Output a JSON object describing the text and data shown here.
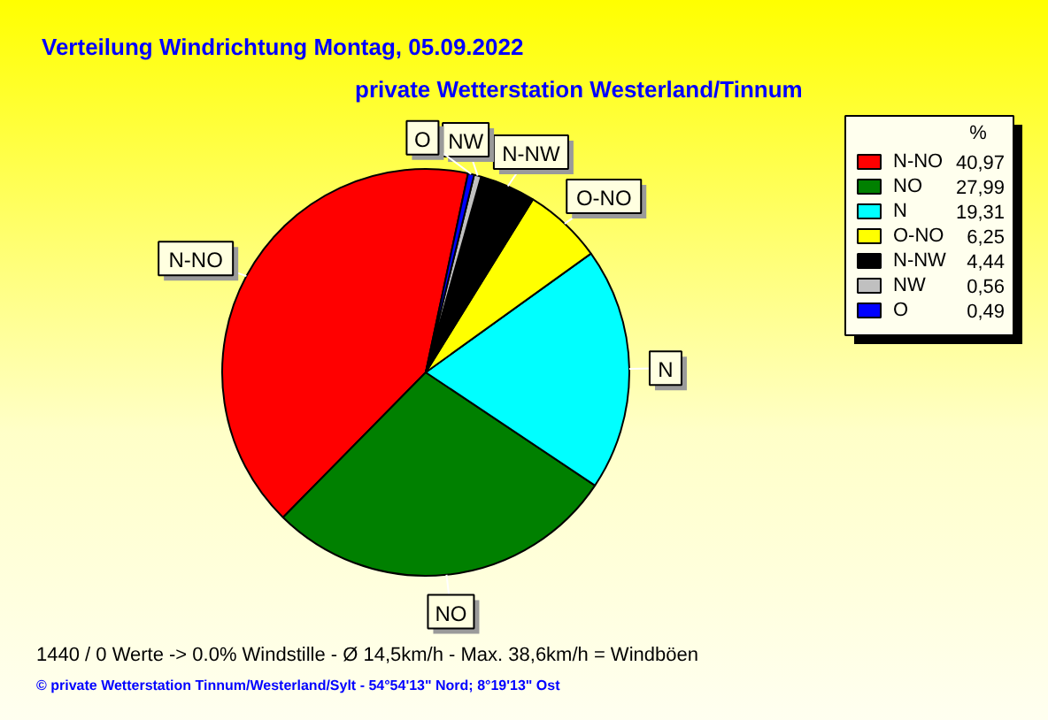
{
  "chart_data": {
    "type": "pie",
    "title": "Verteilung Windrichtung   Montag, 05.09.2022",
    "subtitle": "private Wetterstation Westerland/Tinnum",
    "categories": [
      "N-NO",
      "NO",
      "N",
      "O-NO",
      "N-NW",
      "NW",
      "O"
    ],
    "values": [
      40.97,
      27.99,
      19.31,
      6.25,
      4.44,
      0.56,
      0.49
    ],
    "colors": [
      "#ff0000",
      "#008000",
      "#00ffff",
      "#ffff00",
      "#000000",
      "#c0c0c0",
      "#0000ff"
    ],
    "value_labels": [
      "40,97",
      "27,99",
      "19,31",
      "6,25",
      "4,44",
      "0,56",
      "0,49"
    ],
    "legend": "top right",
    "legend_title": "%",
    "annotations": [
      "1440 / 0 Werte  -> 0.0% Windstille   -   Ø 14,5km/h  -  Max. 38,6km/h = Windböen",
      "© private Wetterstation Tinnum/Westerland/Sylt   -   54°54'13\" Nord; 8°19'13\" Ost"
    ]
  }
}
